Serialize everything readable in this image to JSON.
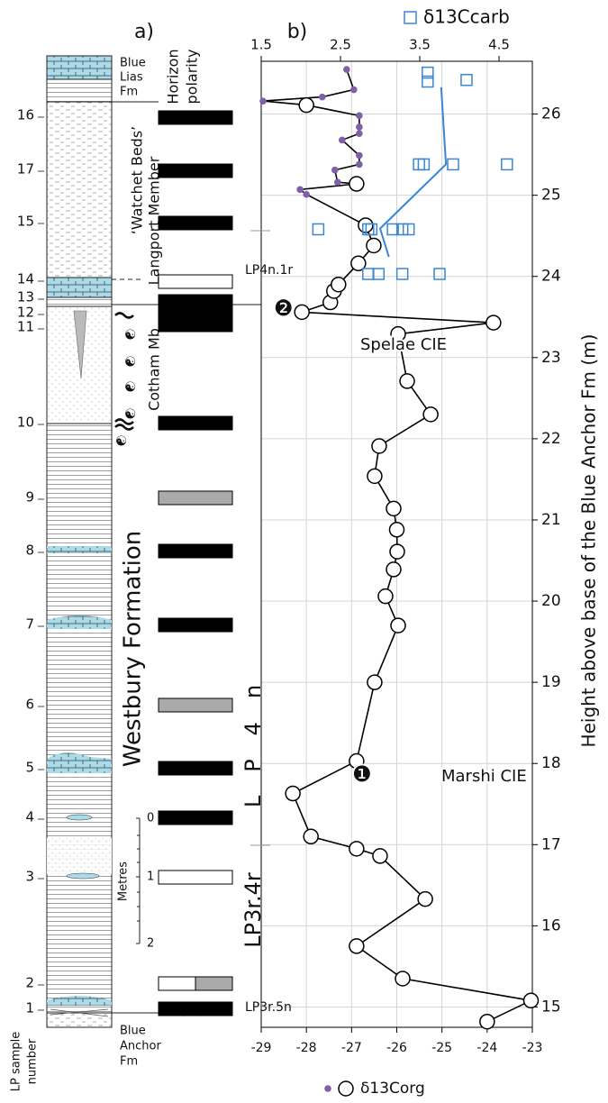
{
  "panel_a": {
    "label": "a)",
    "polarity_title": [
      "Horizon",
      "polarity"
    ],
    "blue_lias": [
      "Blue",
      "Lias",
      "Fm"
    ],
    "watchet": "‘Watchet Beds’",
    "langport": "Langport Member",
    "cotham": "Cotham Mb",
    "westbury": "Westbury Formation",
    "blue_anchor": [
      "Blue",
      "Anchor",
      "Fm"
    ],
    "scale_title": "Metres",
    "scale_ticks": [
      "0",
      "1",
      "2"
    ],
    "sample_axis_title": [
      "LP sample",
      "number"
    ],
    "sample_numbers": [
      "16",
      "17",
      "15",
      "14",
      "13",
      "12",
      "11",
      "10",
      "9",
      "8",
      "7",
      "6",
      "5",
      "4",
      "3",
      "2",
      "1"
    ]
  },
  "chart_data": {
    "type": "line",
    "title": "b)",
    "ylabel": "Height above base of the Blue Anchor Fm (m)",
    "xlim": [
      -29,
      -23
    ],
    "xticks": [
      -29,
      -28,
      -27,
      -26,
      -25,
      -24,
      -23
    ],
    "x2lim": [
      1.5,
      4.92
    ],
    "x2ticks": [
      1.5,
      2.5,
      3.5,
      4.5
    ],
    "ylim": [
      14.75,
      26.65
    ],
    "yticks": [
      15,
      16,
      17,
      18,
      19,
      20,
      21,
      22,
      23,
      24,
      25,
      26
    ],
    "grid": true,
    "series": [
      {
        "name": "δ13Corg",
        "color": "#000000",
        "dot_color": "#7f5fa8",
        "markers": [
          "circle",
          "circle",
          "circle",
          "circle",
          "circle",
          "circle",
          "circle",
          "circle",
          "circle",
          "circle",
          "circle",
          "circle",
          "circle",
          "circle",
          "circle",
          "circle",
          "circle",
          "circle",
          "circle",
          "circle",
          "circle",
          "circle",
          "circle",
          "circle",
          "circle",
          "circle",
          "circle",
          "circle",
          "circle",
          "circle",
          "dot",
          "dot",
          "circle",
          "dot",
          "dot",
          "dot",
          "dot",
          "dot",
          "dot",
          "dot",
          "dot",
          "circle",
          "dot",
          "dot",
          "dot",
          "dot"
        ],
        "x": [
          -24.0,
          -23.03,
          -25.87,
          -26.89,
          -25.37,
          -26.37,
          -26.89,
          -27.9,
          -28.3,
          -26.89,
          -26.49,
          -25.97,
          -26.25,
          -26.07,
          -25.99,
          -26.0,
          -26.07,
          -26.49,
          -26.39,
          -25.25,
          -25.77,
          -25.97,
          -23.86,
          -28.1,
          -27.47,
          -27.39,
          -27.29,
          -26.85,
          -26.51,
          -26.69,
          -28.0,
          -28.14,
          -26.89,
          -27.31,
          -27.37,
          -26.83,
          -26.83,
          -27.21,
          -26.83,
          -26.83,
          -26.83,
          -28.0,
          -28.96,
          -27.65,
          -26.95,
          -27.11
        ],
        "y": [
          14.82,
          15.08,
          15.35,
          15.75,
          16.33,
          16.86,
          16.95,
          17.1,
          17.63,
          18.03,
          19.0,
          19.7,
          20.06,
          20.39,
          20.61,
          20.88,
          21.14,
          21.54,
          21.91,
          22.3,
          22.71,
          23.29,
          23.43,
          23.56,
          23.68,
          23.82,
          23.9,
          24.16,
          24.38,
          24.63,
          25.01,
          25.07,
          25.14,
          25.16,
          25.31,
          25.38,
          25.49,
          25.68,
          25.76,
          25.84,
          25.98,
          26.11,
          26.16,
          26.21,
          26.3,
          26.55
        ]
      },
      {
        "name": "δ13Ccarb",
        "color": "#3a86d0",
        "axis": "x2",
        "marker": "square",
        "x": [
          3.6,
          3.6,
          4.09,
          3.49,
          3.55,
          3.92,
          4.6,
          2.22,
          2.85,
          2.89,
          3.16,
          3.28,
          3.36,
          2.85,
          2.98,
          3.28,
          3.75
        ],
        "y": [
          26.51,
          26.4,
          26.42,
          25.38,
          25.38,
          25.38,
          25.38,
          24.58,
          24.58,
          24.58,
          24.58,
          24.58,
          24.58,
          24.03,
          24.03,
          24.03,
          24.03
        ]
      },
      {
        "color": "#3a86d0",
        "axis": "x2",
        "marker": "none",
        "x": [
          3.77,
          3.83,
          3.0,
          3.11
        ],
        "y": [
          26.33,
          25.38,
          24.59,
          24.24
        ]
      }
    ],
    "annotations": [
      "❷",
      "Spelae CIE",
      "❶",
      "Marshi CIE",
      "LP4n.1r",
      "LP3r.5n",
      "LP4n",
      "LP3r.4r"
    ]
  }
}
